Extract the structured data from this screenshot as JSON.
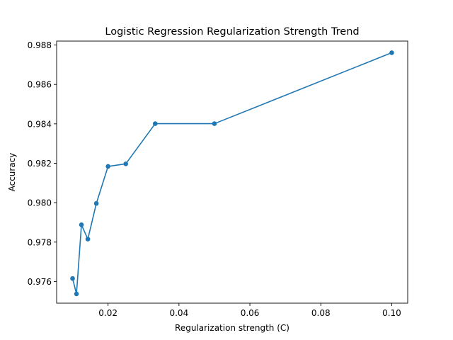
{
  "chart_data": {
    "type": "line",
    "title": "Logistic Regression Regularization Strength Trend",
    "xlabel": "Regularization strength (C)",
    "ylabel": "Accuracy",
    "xlim": [
      0.0055,
      0.1045
    ],
    "ylim": [
      0.9749,
      0.9882
    ],
    "xticks": [
      0.02,
      0.04,
      0.06,
      0.08,
      0.1
    ],
    "xtick_labels": [
      "0.02",
      "0.04",
      "0.06",
      "0.08",
      "0.10"
    ],
    "yticks": [
      0.976,
      0.978,
      0.98,
      0.982,
      0.984,
      0.986,
      0.988
    ],
    "ytick_labels": [
      "0.976",
      "0.978",
      "0.980",
      "0.982",
      "0.984",
      "0.986",
      "0.988"
    ],
    "grid": false,
    "series": [
      {
        "color": "#1f77b4",
        "marker": "circle",
        "x": [
          0.01,
          0.0111,
          0.0125,
          0.0143,
          0.0167,
          0.02,
          0.025,
          0.0333,
          0.05,
          0.1
        ],
        "y": [
          0.97615,
          0.97537,
          0.97888,
          0.97815,
          0.97996,
          0.98184,
          0.98197,
          0.98401,
          0.98401,
          0.98761
        ]
      }
    ]
  }
}
